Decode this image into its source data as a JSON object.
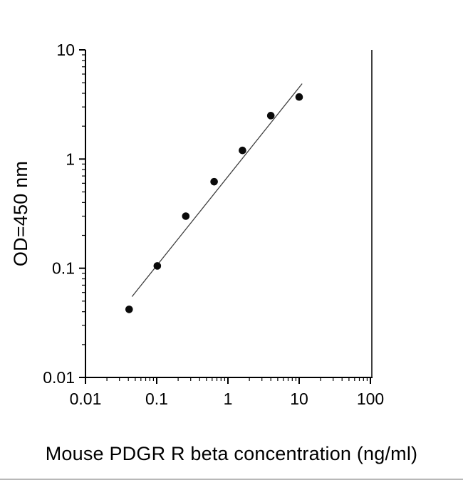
{
  "chart_data": {
    "type": "scatter",
    "title": "",
    "xlabel": "Mouse PDGR R beta concentration (ng/ml)",
    "ylabel": "OD=450 nm",
    "xscale": "log",
    "yscale": "log",
    "xlim": [
      0.01,
      100
    ],
    "ylim": [
      0.01,
      10
    ],
    "x": [
      0.041,
      0.102,
      0.256,
      0.64,
      1.6,
      4,
      10
    ],
    "y": [
      0.042,
      0.105,
      0.3,
      0.62,
      1.2,
      2.5,
      3.7
    ],
    "fit_line": {
      "x1": 0.045,
      "y1": 0.055,
      "x2": 11,
      "y2": 4.9
    },
    "x_ticks": [
      {
        "value": 0.01,
        "label": "0.01"
      },
      {
        "value": 0.1,
        "label": "0.1"
      },
      {
        "value": 1,
        "label": "1"
      },
      {
        "value": 10,
        "label": "10"
      },
      {
        "value": 100,
        "label": "100"
      }
    ],
    "y_ticks": [
      {
        "value": 0.01,
        "label": "0.01"
      },
      {
        "value": 0.1,
        "label": "0.1"
      },
      {
        "value": 1,
        "label": "1"
      },
      {
        "value": 10,
        "label": "10"
      }
    ],
    "marker_color": "#0a0a0a",
    "line_color": "#3c3c3c",
    "axis_color": "#000000",
    "grid": "off",
    "legend": "none"
  }
}
